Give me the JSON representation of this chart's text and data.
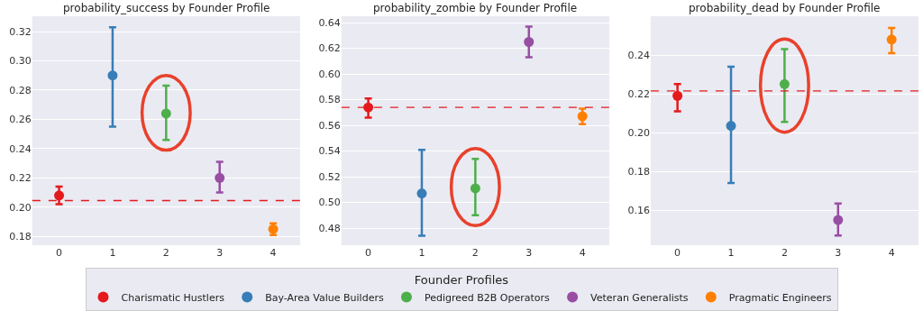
{
  "chart_data": [
    {
      "type": "scatter",
      "title": "probability_success by Founder Profile",
      "xlim": [
        -0.5,
        4.5
      ],
      "xticks": [
        0,
        1,
        2,
        3,
        4
      ],
      "ylim": [
        0.174,
        0.3305
      ],
      "yticks": [
        {
          "value": 0.18,
          "label": "0.18"
        },
        {
          "value": 0.2,
          "label": "0.20"
        },
        {
          "value": 0.22,
          "label": "0.22"
        },
        {
          "value": 0.24,
          "label": "0.24"
        },
        {
          "value": 0.26,
          "label": "0.26"
        },
        {
          "value": 0.28,
          "label": "0.28"
        },
        {
          "value": 0.3,
          "label": "0.30"
        },
        {
          "value": 0.32,
          "label": "0.32"
        }
      ],
      "grid": "y",
      "marker": "circle",
      "legend": "bottom",
      "legend_title": "Founder Profiles",
      "series": [
        {
          "name": "Charismatic Hustlers",
          "color": "#e41a1c",
          "x": [
            0
          ],
          "values": [
            0.208
          ],
          "errors": [
            [
              0.202,
              0.214
            ]
          ]
        },
        {
          "name": "Bay-Area Value Builders",
          "color": "#377eb8",
          "x": [
            1
          ],
          "values": [
            0.29
          ],
          "errors": [
            [
              0.255,
              0.323
            ]
          ]
        },
        {
          "name": "Pedigreed B2B Operators",
          "color": "#4daf4a",
          "x": [
            2
          ],
          "values": [
            0.264
          ],
          "errors": [
            [
              0.246,
              0.283
            ]
          ]
        },
        {
          "name": "Veteran Generalists",
          "color": "#984ea3",
          "x": [
            3
          ],
          "values": [
            0.22
          ],
          "errors": [
            [
              0.21,
              0.231
            ]
          ]
        },
        {
          "name": "Pragmatic Engineers",
          "color": "#ff7f00",
          "x": [
            4
          ],
          "values": [
            0.185
          ],
          "errors": [
            [
              0.181,
              0.189
            ]
          ]
        }
      ],
      "ref_lines": [
        {
          "axis": "y",
          "value": 0.2045,
          "color": "#e41a1c",
          "line_style": "dashed"
        }
      ]
    },
    {
      "type": "scatter",
      "title": "probability_zombie by Founder Profile",
      "xlim": [
        -0.5,
        4.5
      ],
      "xticks": [
        0,
        1,
        2,
        3,
        4
      ],
      "ylim": [
        0.4667,
        0.645
      ],
      "yticks": [
        {
          "value": 0.48,
          "label": "0.48"
        },
        {
          "value": 0.5,
          "label": "0.50"
        },
        {
          "value": 0.52,
          "label": "0.52"
        },
        {
          "value": 0.54,
          "label": "0.54"
        },
        {
          "value": 0.56,
          "label": "0.56"
        },
        {
          "value": 0.58,
          "label": "0.58"
        },
        {
          "value": 0.6,
          "label": "0.60"
        },
        {
          "value": 0.62,
          "label": "0.62"
        },
        {
          "value": 0.64,
          "label": "0.64"
        }
      ],
      "grid": "y",
      "marker": "circle",
      "legend": "bottom",
      "series": [
        {
          "name": "Charismatic Hustlers",
          "color": "#e41a1c",
          "x": [
            0
          ],
          "values": [
            0.574
          ],
          "errors": [
            [
              0.566,
              0.581
            ]
          ]
        },
        {
          "name": "Bay-Area Value Builders",
          "color": "#377eb8",
          "x": [
            1
          ],
          "values": [
            0.507
          ],
          "errors": [
            [
              0.474,
              0.541
            ]
          ]
        },
        {
          "name": "Pedigreed B2B Operators",
          "color": "#4daf4a",
          "x": [
            2
          ],
          "values": [
            0.511
          ],
          "errors": [
            [
              0.49,
              0.534
            ]
          ]
        },
        {
          "name": "Veteran Generalists",
          "color": "#984ea3",
          "x": [
            3
          ],
          "values": [
            0.625
          ],
          "errors": [
            [
              0.613,
              0.637
            ]
          ]
        },
        {
          "name": "Pragmatic Engineers",
          "color": "#ff7f00",
          "x": [
            4
          ],
          "values": [
            0.567
          ],
          "errors": [
            [
              0.561,
              0.573
            ]
          ]
        }
      ],
      "ref_lines": [
        {
          "axis": "y",
          "value": 0.574,
          "color": "#e41a1c",
          "line_style": "dashed"
        }
      ]
    },
    {
      "type": "scatter",
      "title": "probability_dead by Founder Profile",
      "xlim": [
        -0.5,
        4.5
      ],
      "xticks": [
        0,
        1,
        2,
        3,
        4
      ],
      "ylim": [
        0.142,
        0.26
      ],
      "yticks": [
        {
          "value": 0.16,
          "label": "0.16"
        },
        {
          "value": 0.18,
          "label": "0.18"
        },
        {
          "value": 0.2,
          "label": "0.20"
        },
        {
          "value": 0.22,
          "label": "0.22"
        },
        {
          "value": 0.24,
          "label": "0.24"
        }
      ],
      "grid": "y",
      "marker": "circle",
      "legend": "bottom",
      "series": [
        {
          "name": "Charismatic Hustlers",
          "color": "#e41a1c",
          "x": [
            0
          ],
          "values": [
            0.219
          ],
          "errors": [
            [
              0.211,
              0.225
            ]
          ]
        },
        {
          "name": "Bay-Area Value Builders",
          "color": "#377eb8",
          "x": [
            1
          ],
          "values": [
            0.2035
          ],
          "errors": [
            [
              0.174,
              0.234
            ]
          ]
        },
        {
          "name": "Pedigreed B2B Operators",
          "color": "#4daf4a",
          "x": [
            2
          ],
          "values": [
            0.225
          ],
          "errors": [
            [
              0.2055,
              0.243
            ]
          ]
        },
        {
          "name": "Veteran Generalists",
          "color": "#984ea3",
          "x": [
            3
          ],
          "values": [
            0.155
          ],
          "errors": [
            [
              0.147,
              0.1635
            ]
          ]
        },
        {
          "name": "Pragmatic Engineers",
          "color": "#ff7f00",
          "x": [
            4
          ],
          "values": [
            0.248
          ],
          "errors": [
            [
              0.241,
              0.254
            ]
          ]
        }
      ],
      "ref_lines": [
        {
          "axis": "y",
          "value": 0.2215,
          "color": "#e41a1c",
          "line_style": "dashed"
        }
      ]
    }
  ]
}
